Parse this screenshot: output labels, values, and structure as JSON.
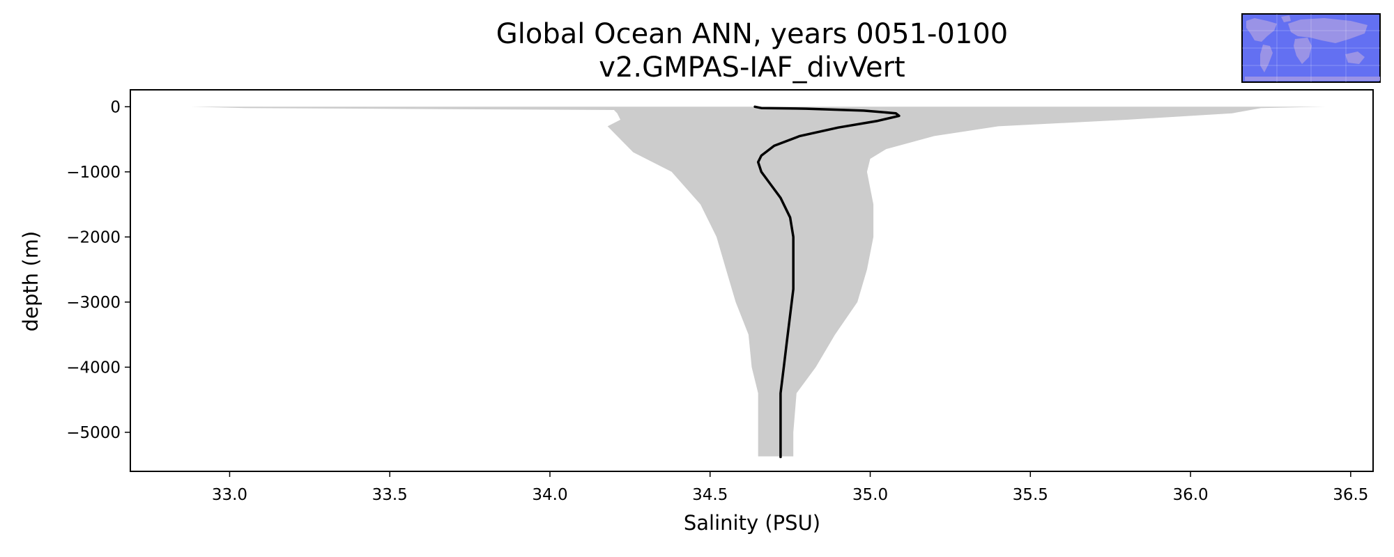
{
  "chart_data": {
    "type": "area",
    "title": "Global Ocean ANN, years 0051-0100",
    "subtitle": "v2.GMPAS-IAF_divVert",
    "xlabel": "Salinity (PSU)",
    "ylabel": "depth (m)",
    "xlim": [
      32.69,
      36.57
    ],
    "ylim": [
      -5600,
      260
    ],
    "xticks": [
      33.0,
      33.5,
      34.0,
      34.5,
      35.0,
      35.5,
      36.0,
      36.5
    ],
    "xtick_labels": [
      "33.0",
      "33.5",
      "34.0",
      "34.5",
      "35.0",
      "35.5",
      "36.0",
      "36.5"
    ],
    "yticks": [
      0,
      -1000,
      -2000,
      -3000,
      -4000,
      -5000
    ],
    "ytick_labels": [
      "0",
      "−1000",
      "−2000",
      "−3000",
      "−4000",
      "−5000"
    ],
    "grid": false,
    "mean_profile": {
      "color": "#000000",
      "salinity": [
        34.64,
        34.66,
        34.8,
        34.98,
        35.08,
        35.09,
        35.02,
        34.9,
        34.78,
        34.7,
        34.66,
        34.65,
        34.66,
        34.69,
        34.72,
        34.75,
        34.76,
        34.76,
        34.76,
        34.76,
        34.75,
        34.74,
        34.73,
        34.72,
        34.72,
        34.72
      ],
      "depth": [
        0,
        -20,
        -30,
        -60,
        -100,
        -140,
        -220,
        -320,
        -450,
        -600,
        -750,
        -850,
        -1000,
        -1200,
        -1400,
        -1700,
        -2000,
        -2200,
        -2500,
        -2800,
        -3200,
        -3600,
        -4000,
        -4400,
        -4800,
        -5380
      ]
    },
    "range_envelope": {
      "color": "#cccccc",
      "min_salinity": [
        32.88,
        33.05,
        34.2,
        34.21,
        34.22,
        34.18,
        34.2,
        34.22,
        34.26,
        34.38,
        34.47,
        34.52,
        34.55,
        34.58,
        34.62,
        34.63,
        34.65,
        34.65,
        34.65
      ],
      "min_depth": [
        0,
        -20,
        -50,
        -100,
        -200,
        -300,
        -400,
        -500,
        -700,
        -1000,
        -1500,
        -2000,
        -2500,
        -3000,
        -3500,
        -4000,
        -4400,
        -5000,
        -5370
      ],
      "max_salinity": [
        36.42,
        36.22,
        36.13,
        35.8,
        35.4,
        35.2,
        35.05,
        35.0,
        34.99,
        35.01,
        35.01,
        34.99,
        34.96,
        34.89,
        34.83,
        34.77,
        34.76,
        34.76
      ],
      "max_depth": [
        0,
        -20,
        -100,
        -200,
        -300,
        -450,
        -650,
        -800,
        -1000,
        -1500,
        -2000,
        -2500,
        -3000,
        -3500,
        -4000,
        -4400,
        -5000,
        -5370
      ]
    },
    "inset_map": {
      "land_color": "#9a93e6",
      "ocean_color": "#6370f2",
      "border_color": "#000000"
    }
  }
}
